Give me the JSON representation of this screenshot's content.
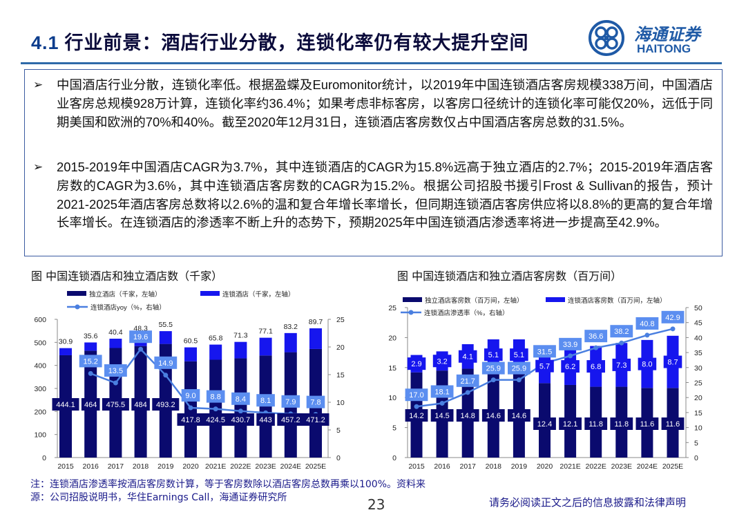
{
  "header": {
    "section": "4.1",
    "title": "行业前景：酒店行业分散，连锁化率仍有较大提升空间",
    "logo_cn": "海通证券",
    "logo_en": "HAITONG"
  },
  "summary": {
    "bullet_icon": "arrow-bullet-icon",
    "points": [
      "中国酒店行业分散，连锁化率低。根据盈蝶及Euromonitor统计，以2019年中国连锁酒店客房规模338万间，中国酒店业客房总规模928万计算，连锁化率约36.4%；如果考虑非标客房，以客房口径统计的连锁化率可能仅20%，远低于同期美国和欧洲的70%和40%。截至2020年12月31日，连锁酒店客房数仅占中国酒店客房总数的31.5%。",
      "2015-2019年中国酒店CAGR为3.7%，其中连锁酒店的CAGR为15.8%远高于独立酒店的2.7%；2015-2019年酒店客房数的CAGR为3.6%，其中连锁酒店客房数的CAGR为15.2%。根据公司招股书援引Frost & Sullivan的报告，预计2021-2025年酒店客房总数将以2.6%的温和复合年增长率增长，但同期连锁酒店客房供应将以8.8%的更高的复合年增长率增长。在连锁酒店的渗透率不断上升的态势下，预期2025年中国连锁酒店渗透率将进一步提高至42.9%。"
    ]
  },
  "colors": {
    "independent": "#0a0a6e",
    "chain": "#1616ee",
    "line": "#4a7fe0",
    "label_box": "#5b8ef0"
  },
  "chart_data": [
    {
      "type": "bar",
      "stacked": true,
      "title": "图  中国连锁酒店和独立酒店数（千家）",
      "categories": [
        "2015",
        "2016",
        "2017",
        "2018",
        "2019",
        "2020",
        "2021E",
        "2022E",
        "2023E",
        "2024E",
        "2025E"
      ],
      "series": [
        {
          "name": "独立酒店（千家，左轴）",
          "axis": "left",
          "type": "bar",
          "values": [
            444.1,
            464,
            475.5,
            484,
            493.2,
            417.8,
            424.5,
            430.7,
            443,
            457.2,
            471.2
          ]
        },
        {
          "name": "连锁酒店（千家，左轴）",
          "axis": "left",
          "type": "bar",
          "values": [
            30.9,
            35.6,
            40.4,
            48.3,
            55.5,
            60.5,
            65.8,
            71.3,
            77.1,
            83.2,
            89.7
          ]
        },
        {
          "name": "连锁酒店yoy（%，右轴）",
          "axis": "right",
          "type": "line",
          "values": [
            null,
            15.2,
            13.5,
            19.6,
            14.9,
            9.0,
            8.8,
            8.4,
            8.1,
            7.9,
            7.8
          ]
        }
      ],
      "ylim_left": [
        0,
        600
      ],
      "yticks_left": [
        "0",
        "100",
        "200",
        "300",
        "400",
        "500",
        "600"
      ],
      "ylim_right": [
        0,
        25
      ],
      "yticks_right": [
        "0",
        "5",
        "10",
        "15",
        "20",
        "25"
      ],
      "grid": false,
      "legend": "top"
    },
    {
      "type": "bar",
      "stacked": true,
      "title": "图  中国连锁酒店和独立酒店客房数（百万间）",
      "categories": [
        "2015",
        "2016",
        "2017",
        "2018",
        "2019",
        "2020",
        "2021E",
        "2022E",
        "2023E",
        "2024E",
        "2025E"
      ],
      "series": [
        {
          "name": "独立酒店客房数（百万间，左轴）",
          "axis": "left",
          "type": "bar",
          "values": [
            14.2,
            14.5,
            14.8,
            14.6,
            14.6,
            12.4,
            12.1,
            11.8,
            11.8,
            11.6,
            11.6
          ]
        },
        {
          "name": "连锁酒店客房数（百万间，左轴）",
          "axis": "left",
          "type": "bar",
          "values": [
            2.9,
            3.2,
            4.1,
            5.1,
            5.1,
            5.7,
            6.2,
            6.8,
            7.3,
            8.0,
            8.7
          ]
        },
        {
          "name": "连锁酒店渗透率（%，右轴）",
          "axis": "right",
          "type": "line",
          "values": [
            17.0,
            18.1,
            21.7,
            25.9,
            25.9,
            31.5,
            33.9,
            36.6,
            38.2,
            40.8,
            42.9
          ]
        }
      ],
      "ylim_left": [
        0,
        25
      ],
      "yticks_left": [
        "0",
        "5",
        "10",
        "15",
        "20",
        "25"
      ],
      "ylim_right": [
        0,
        50
      ],
      "yticks_right": [
        "0",
        "5",
        "10",
        "15",
        "20",
        "25",
        "30",
        "35",
        "40",
        "45",
        "50"
      ],
      "grid": false,
      "legend": "top"
    }
  ],
  "footer": {
    "note": "注：连锁酒店渗透率按酒店客房数计算，等于客房数除以酒店客房总数再乘以100%。资料来源：公司招股说明书，华住Earnings Call，海通证券研究所",
    "page": "23",
    "disclaimer": "请务必阅读正文之后的信息披露和法律声明"
  }
}
